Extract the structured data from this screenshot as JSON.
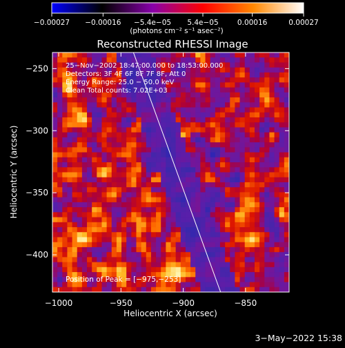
{
  "chart_data": {
    "type": "heatmap",
    "title": "Reconstructed RHESSI Image",
    "xlabel": "Heliocentric X (arcsec)",
    "ylabel": "Heliocentric Y (arcsec)",
    "xlim": [
      -1005,
      -815
    ],
    "ylim": [
      -430,
      -237
    ],
    "xticks": [
      {
        "value": -1000,
        "label": "−1000"
      },
      {
        "value": -950,
        "label": "−950"
      },
      {
        "value": -900,
        "label": "−900"
      },
      {
        "value": -850,
        "label": "−850"
      }
    ],
    "yticks": [
      {
        "value": -250,
        "label": "−250"
      },
      {
        "value": -300,
        "label": "−300"
      },
      {
        "value": -350,
        "label": "−350"
      },
      {
        "value": -400,
        "label": "−400"
      }
    ],
    "colorbar": {
      "min": -0.00027,
      "max": 0.00027,
      "ticks": [
        {
          "value": -0.00027,
          "label": "−0.00027"
        },
        {
          "value": -0.00016,
          "label": "−0.00016"
        },
        {
          "value": -5.4e-05,
          "label": "−5.4e−05"
        },
        {
          "value": 5.4e-05,
          "label": "5.4e−05"
        },
        {
          "value": 0.00016,
          "label": "0.00016"
        },
        {
          "value": 0.00027,
          "label": "0.00027"
        }
      ],
      "unit_label": "(photons cm⁻² s⁻¹ asec⁻²)",
      "colormap": [
        "#0000ff",
        "#000000",
        "#8800aa",
        "#ff0000",
        "#ff8800",
        "#ffffff"
      ]
    },
    "annotations": [
      "25−Nov−2002 18:47:00.000 to 18:53:00.000",
      "Detectors: 3F 4F 6F 8F 7F 8F, Att 0",
      "Energy Range: 25.0 − 50.0 keV",
      "Clean     Total counts: 7.02E+03"
    ],
    "peak_label": "Position of Peak = [−975,−253]",
    "peak_position": [
      -975,
      -253
    ],
    "limb": {
      "color": "#ffffff",
      "points": [
        [
          -940,
          -237
        ],
        [
          -870,
          -430
        ]
      ]
    },
    "grid": false,
    "legend": "none"
  },
  "footer": {
    "timestamp": "3−May−2022 15:38"
  }
}
